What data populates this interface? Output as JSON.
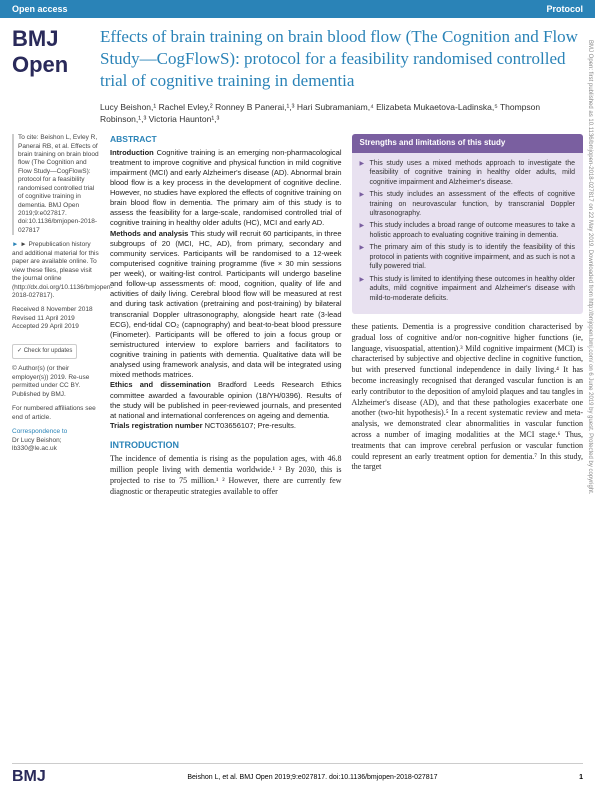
{
  "header": {
    "left": "Open access",
    "right": "Protocol"
  },
  "journal": "BMJ Open",
  "title": "Effects of brain training on brain blood flow (The Cognition and Flow Study—CogFlowS): protocol for a feasibility randomised controlled trial of cognitive training in dementia",
  "authors": "Lucy Beishon,¹ Rachel Evley,² Ronney B Panerai,¹,³ Hari Subramaniam,⁴ Elizabeta Mukaetova-Ladinska,⁵ Thompson Robinson,¹,³ Victoria Haunton¹,³",
  "sidebar": {
    "cite": "To cite: Beishon L, Evley R, Panerai RB, et al. Effects of brain training on brain blood flow (The Cognition and Flow Study—CogFlowS): protocol for a feasibility randomised controlled trial of cognitive training in dementia. BMJ Open 2019;9:e027817. doi:10.1136/bmjopen-2018-027817",
    "prepub": "► Prepublication history and additional material for this paper are available online. To view these files, please visit the journal online (http://dx.doi.org/10.1136/bmjopen-2018-027817).",
    "dates": "Received 8 November 2018\nRevised 11 April 2019\nAccepted 29 April 2019",
    "check": "Check for updates",
    "copyright": "© Author(s) (or their employer(s)) 2019. Re-use permitted under CC BY. Published by BMJ.",
    "affil": "For numbered affiliations see end of article.",
    "corr_label": "Correspondence to",
    "corr": "Dr Lucy Beishon;\nlb330@le.ac.uk"
  },
  "abstract": {
    "head": "ABSTRACT",
    "intro_label": "Introduction",
    "intro": " Cognitive training is an emerging non-pharmacological treatment to improve cognitive and physical function in mild cognitive impairment (MCI) and early Alzheimer's disease (AD). Abnormal brain blood flow is a key process in the development of cognitive decline. However, no studies have explored the effects of cognitive training on brain blood flow in dementia. The primary aim of this study is to assess the feasibility for a large-scale, randomised controlled trial of cognitive training in healthy older adults (HC), MCI and early AD.",
    "methods_label": "Methods and analysis",
    "methods": " This study will recruit 60 participants, in three subgroups of 20 (MCI, HC, AD), from primary, secondary and community services. Participants will be randomised to a 12-week computerised cognitive training programme (five × 30 min sessions per week), or waiting-list control. Participants will undergo baseline and follow-up assessments of: mood, cognition, quality of life and activities of daily living. Cerebral blood flow will be measured at rest and during task activation (pretraining and post-training) by bilateral transcranial Doppler ultrasonography, alongside heart rate (3-lead ECG), end-tidal CO₂ (capnography) and beat-to-beat blood pressure (Finometer). Participants will be offered to join a focus group or semistructured interview to explore barriers and facilitators to cognitive training in patients with dementia. Qualitative data will be analysed using framework analysis, and data will be integrated using mixed methods matrices.",
    "ethics_label": "Ethics and dissemination",
    "ethics": " Bradford Leeds Research Ethics committee awarded a favourable opinion (18/YH/0396). Results of the study will be published in peer-reviewed journals, and presented at national and international conferences on ageing and dementia.",
    "trials_label": "Trials registration number",
    "trials": " NCT03656107; Pre-results."
  },
  "box": {
    "title": "Strengths and limitations of this study",
    "items": [
      "This study uses a mixed methods approach to investigate the feasibility of cognitive training in healthy older adults, mild cognitive impairment and Alzheimer's disease.",
      "This study includes an assessment of the effects of cognitive training on neurovascular function, by transcranial Doppler ultrasonography.",
      "This study includes a broad range of outcome measures to take a holistic approach to evaluating cognitive training in dementia.",
      "The primary aim of this study is to identify the feasibility of this protocol in patients with cognitive impairment, and as such is not a fully powered trial.",
      "This study is limited to identifying these outcomes in healthy older adults, mild cognitive impairment and Alzheimer's disease with mild-to-moderate deficits."
    ]
  },
  "intro": {
    "head": "INTRODUCTION",
    "col1": "The incidence of dementia is rising as the population ages, with 46.8 million people living with dementia worldwide.¹ ² By 2030, this is projected to rise to 75 million.¹ ² However, there are currently few diagnostic or therapeutic strategies available to offer",
    "col2": "these patients. Dementia is a progressive condition characterised by gradual loss of cognitive and/or non-cognitive higher functions (ie, language, visuospatial, attention).³ Mild cognitive impairment (MCI) is characterised by subjective and objective decline in cognitive function, but with preserved functional independence in daily living.⁴ It has become increasingly recognised that deranged vascular function is an early contributor to the deposition of amyloid plaques and tau tangles in Alzheimer's disease (AD), and that these pathologies exacerbate one another (two-hit hypothesis).⁵ In a recent systematic review and meta-analysis, we demonstrated clear abnormalities in vascular function across a number of imaging modalities at the MCI stage.⁶ Thus, treatments that can improve cerebral perfusion or vascular function could represent an early treatment option for dementia.⁷ In this study, the target"
  },
  "footer": {
    "logo": "BMJ",
    "cite": "Beishon L, et al. BMJ Open 2019;9:e027817. doi:10.1136/bmjopen-2018-027817",
    "page": "1"
  },
  "side": "BMJ Open: first published as 10.1136/bmjopen-2018-027817 on 22 May 2019. Downloaded from http://bmjopen.bmj.com/ on 6 June 2019 by guest. Protected by copyright."
}
